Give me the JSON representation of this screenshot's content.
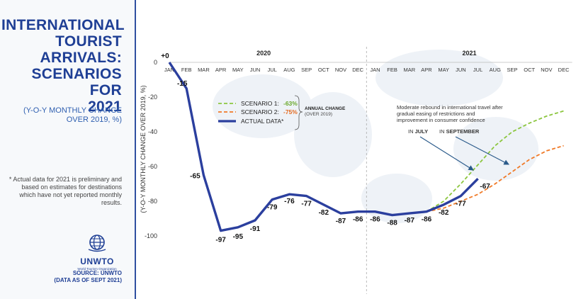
{
  "sidebar": {
    "title_lines": [
      "INTERNATIONAL",
      "TOURIST",
      "ARRIVALS:",
      "SCENARIOS FOR",
      "2021"
    ],
    "subtitle_lines": [
      "(Y-O-Y MONTHLY CHANGE",
      "OVER 2019, %)"
    ],
    "note": "* Actual data for 2021 is preliminary and based on estimates for destinations which have not yet reported monthly results.",
    "logo_text": "UNWTO",
    "logo_subtext": "World Tourism Organization",
    "source_lines": [
      "SOURCE: UNWTO",
      "(DATA AS OF SEPT 2021)"
    ]
  },
  "colors": {
    "actual": "#2b3f9e",
    "scenario1": "#8cc63f",
    "scenario2": "#f07a28",
    "title": "#1f3f95",
    "pct_s1": "#6aa82a",
    "pct_s2": "#e36a1f"
  },
  "annotations": {
    "rebound_text": "Moderate rebound in international travel after gradual easing of restrictions and improvement in consumer confidence",
    "in_july_prefix": "IN ",
    "in_july_bold": "JULY",
    "in_september_prefix": "IN ",
    "in_september_bold": "SEPTEMBER"
  },
  "chart_data": {
    "type": "line",
    "year_labels": [
      "2020",
      "2021"
    ],
    "months": [
      "JAN",
      "FEB",
      "MAR",
      "APR",
      "MAY",
      "JUN",
      "JUL",
      "AUG",
      "SEP",
      "OCT",
      "NOV",
      "DEC",
      "JAN",
      "FEB",
      "MAR",
      "APR",
      "MAY",
      "JUN",
      "JUL",
      "AUG",
      "SEP",
      "OCT",
      "NOV",
      "DEC"
    ],
    "ylabel": "(Y-O-Y MONTHLY CHANGE OVER 2019, %)",
    "ylim": [
      -100,
      0
    ],
    "yticks": [
      0,
      -20,
      -40,
      -60,
      -80,
      -100
    ],
    "grid": false,
    "legend_position": "top-center",
    "legend": {
      "scenario1_label": "SCENARIO 1:",
      "scenario1_pct": "-63%",
      "scenario2_label": "SCENARIO 2:",
      "scenario2_pct": "-75%",
      "actual_label": "ACTUAL DATA*",
      "annual_change_label": "ANNUAL CHANGE",
      "annual_change_sub": "(OVER 2019)"
    },
    "series": [
      {
        "name": "ACTUAL DATA*",
        "values": [
          0,
          -15,
          -65,
          -97,
          -95,
          -91,
          -79,
          -76,
          -77,
          -82,
          -87,
          -86,
          -86,
          -88,
          -87,
          -86,
          -82,
          -77,
          -67
        ],
        "labels": [
          "+0",
          "-15",
          "-65",
          "-97",
          "-95",
          "-91",
          "-79",
          "-76",
          "-77",
          "-82",
          "-87",
          "-86",
          "-86",
          "-88",
          "-87",
          "-86",
          "-82",
          "-77",
          "-67"
        ]
      },
      {
        "name": "SCENARIO 1:",
        "values": [
          null,
          null,
          null,
          null,
          null,
          null,
          null,
          null,
          null,
          null,
          null,
          null,
          null,
          null,
          -87,
          -86,
          -80,
          -70,
          -59,
          -48,
          -40,
          -35,
          -31,
          -28
        ]
      },
      {
        "name": "SCENARIO 2:",
        "values": [
          null,
          null,
          null,
          null,
          null,
          null,
          null,
          null,
          null,
          null,
          null,
          null,
          null,
          null,
          -87,
          -86,
          -84,
          -80,
          -76,
          -70,
          -63,
          -56,
          -51,
          -48
        ]
      }
    ]
  }
}
